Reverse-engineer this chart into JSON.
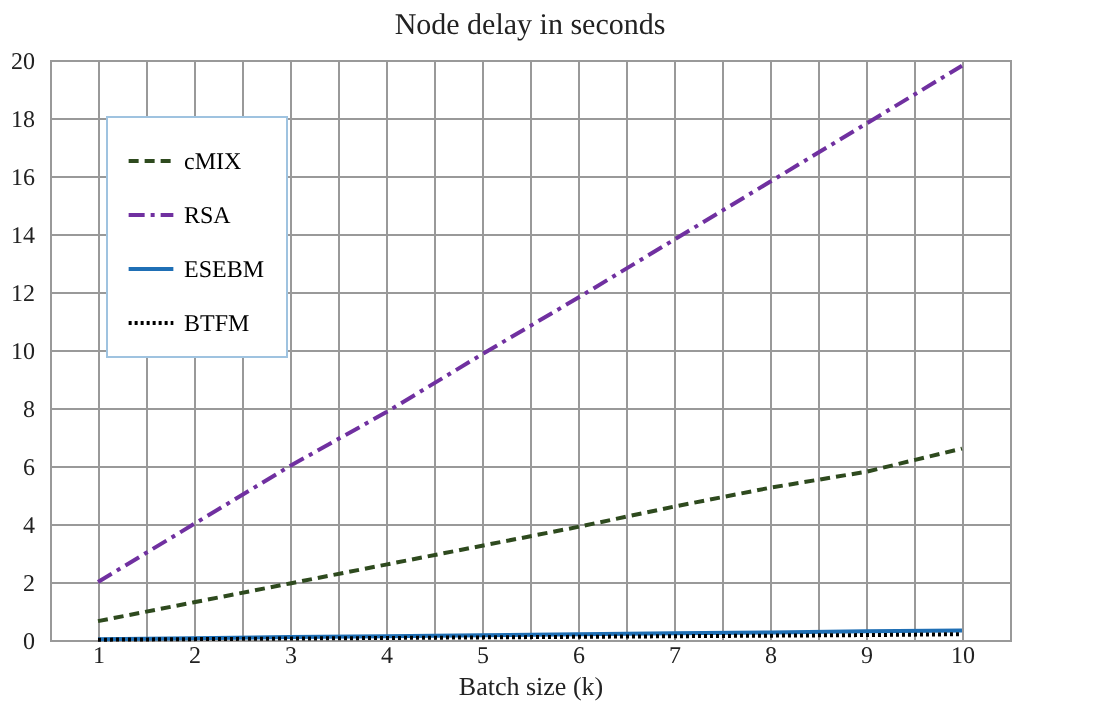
{
  "chart_data": {
    "type": "line",
    "title": "Node delay in seconds",
    "xlabel": "Batch size (k)",
    "x": [
      1,
      2,
      3,
      4,
      5,
      6,
      7,
      8,
      9,
      10
    ],
    "series": [
      {
        "name": "cMIX",
        "color": "#2e4a1e",
        "line_style": "dashed",
        "values": [
          0.65,
          1.3,
          1.95,
          2.6,
          3.25,
          3.9,
          4.6,
          5.25,
          5.8,
          6.6
        ]
      },
      {
        "name": "RSA",
        "color": "#7030a0",
        "line_style": "dashdot",
        "values": [
          2.0,
          4.0,
          6.0,
          7.85,
          9.85,
          11.8,
          13.8,
          15.8,
          17.8,
          19.8
        ]
      },
      {
        "name": "ESEBM",
        "color": "#1f6fb5",
        "line_style": "solid",
        "values": [
          0.03,
          0.06,
          0.1,
          0.13,
          0.16,
          0.2,
          0.23,
          0.26,
          0.3,
          0.33
        ]
      },
      {
        "name": "BTFM",
        "color": "#000000",
        "line_style": "dotted",
        "values": [
          0.01,
          0.03,
          0.05,
          0.07,
          0.09,
          0.11,
          0.13,
          0.15,
          0.17,
          0.2
        ]
      }
    ],
    "xlim": [
      0.5,
      10.5
    ],
    "xticks": [
      {
        "value": 0.5,
        "label": null
      },
      1,
      {
        "value": 1.5,
        "label": null
      },
      2,
      {
        "value": 2.5,
        "label": null
      },
      3,
      {
        "value": 3.5,
        "label": null
      },
      4,
      {
        "value": 4.5,
        "label": null
      },
      5,
      {
        "value": 5.5,
        "label": null
      },
      6,
      {
        "value": 6.5,
        "label": null
      },
      7,
      {
        "value": 7.5,
        "label": null
      },
      8,
      {
        "value": 8.5,
        "label": null
      },
      9,
      {
        "value": 9.5,
        "label": null
      },
      10,
      {
        "value": 10.5,
        "label": null
      }
    ],
    "ylim": [
      0,
      20
    ],
    "yticks": [
      0,
      2,
      4,
      6,
      8,
      10,
      12,
      14,
      16,
      18,
      20
    ],
    "grid": true,
    "legend": "top left",
    "marker": "none"
  }
}
